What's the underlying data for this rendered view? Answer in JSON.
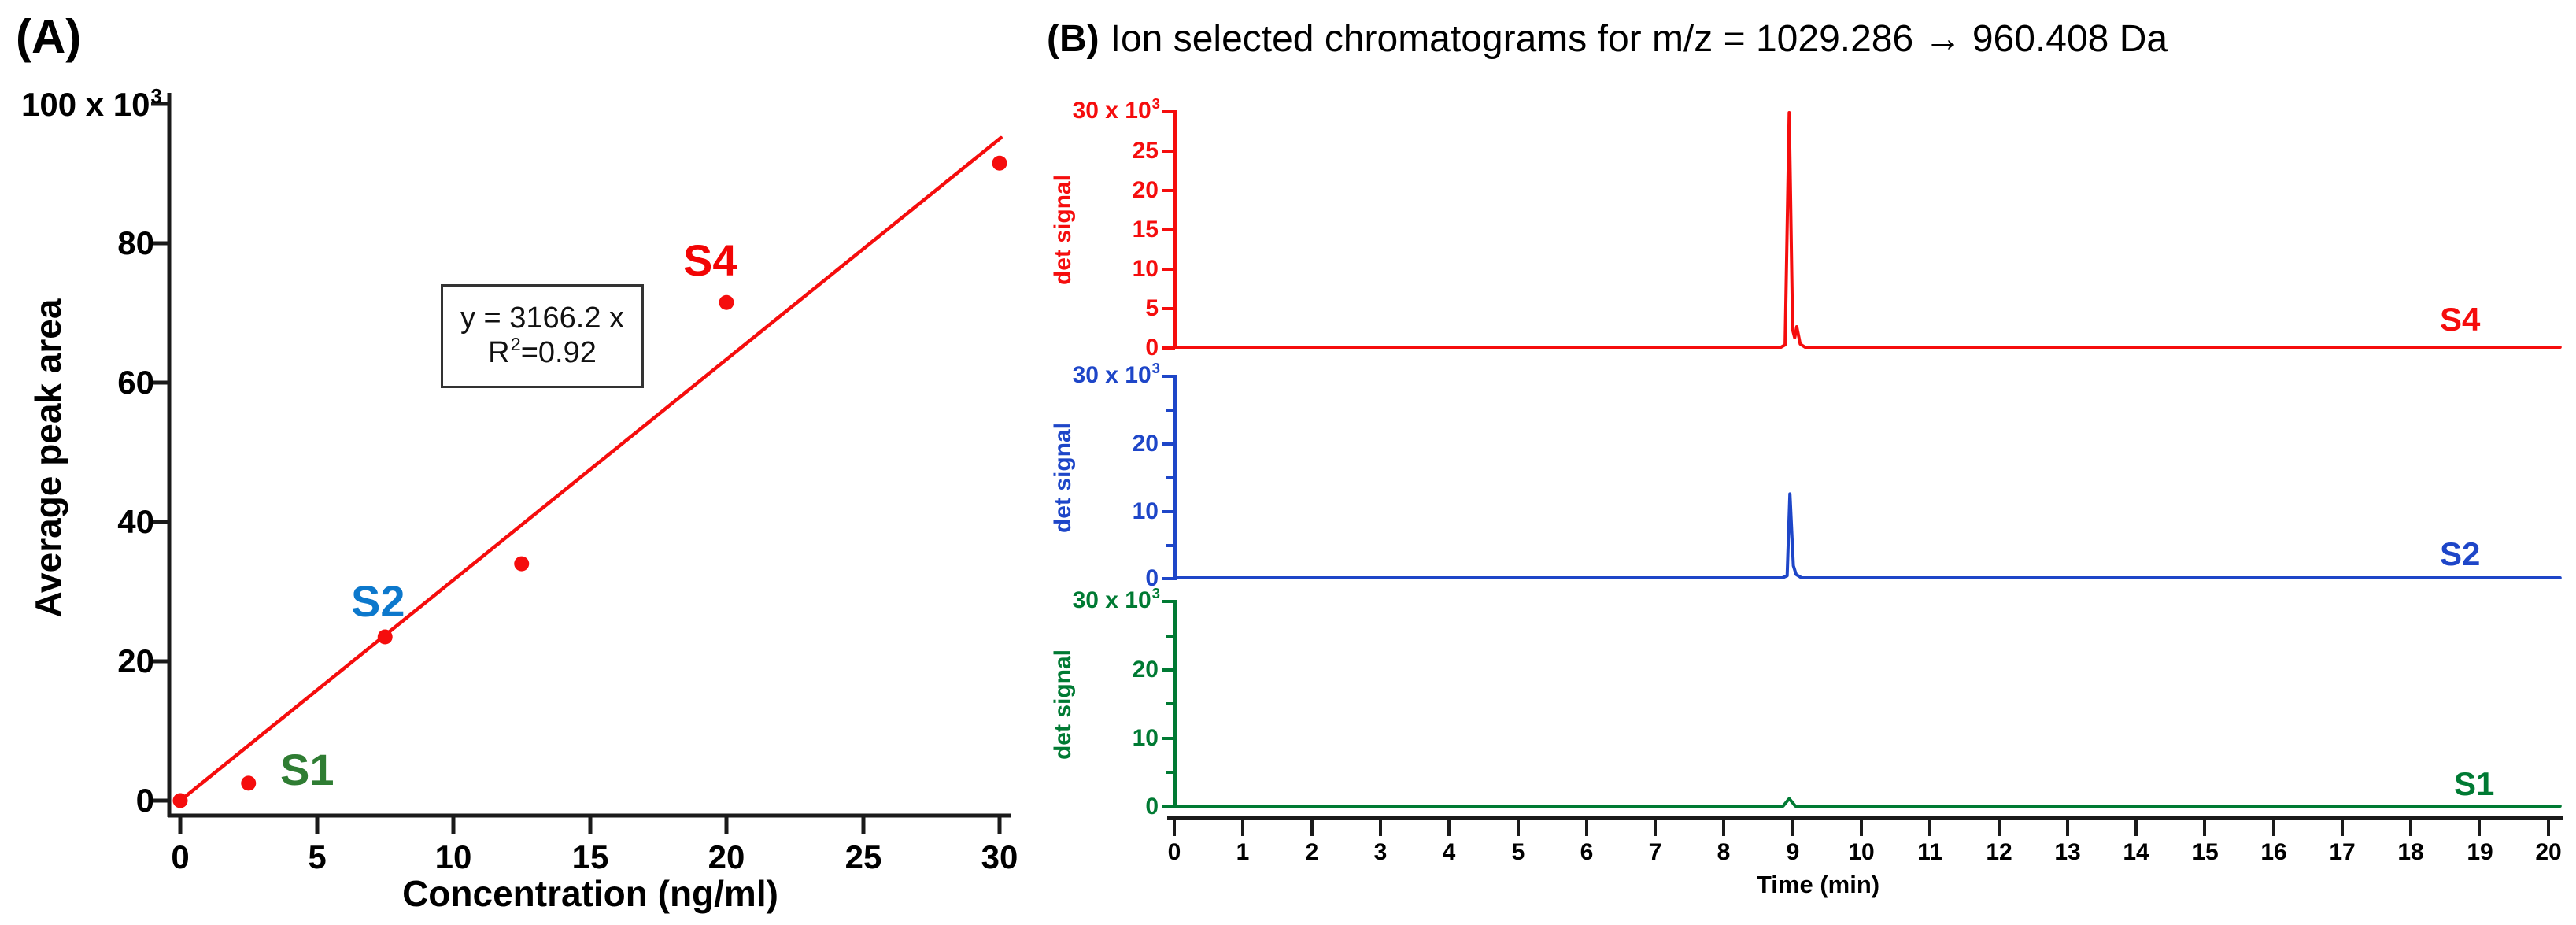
{
  "panelA": {
    "label": "(A)",
    "y_axis_title": "Average peak area",
    "x_axis_title": "Concentration (ng/ml)",
    "y_top_label_prefix": "100 x 10",
    "y_top_label_sup": "3",
    "y_tick_labels": [
      "80",
      "60",
      "40",
      "20",
      "0"
    ],
    "x_tick_labels": [
      "0",
      "5",
      "10",
      "15",
      "20",
      "25",
      "30"
    ],
    "equation_line1": "y = 3166.2 x",
    "equation_r": "R",
    "equation_r_sup": "2",
    "equation_r_rest": "=0.92",
    "sample_labels": {
      "s1": "S1",
      "s2": "S2",
      "s4": "S4"
    },
    "colors": {
      "points": "#f50d0d",
      "fit_line": "#f50d0d",
      "s1_label": "#2f7d33",
      "s2_label": "#0c78cc",
      "s4_label": "#f20505"
    }
  },
  "panelB": {
    "label": "(B)",
    "title": "Ion selected chromatograms for m/z = 1029.286 → 960.408 Da",
    "x_axis_title": "Time (min)",
    "x_tick_labels": [
      "0",
      "1",
      "2",
      "3",
      "4",
      "5",
      "6",
      "7",
      "8",
      "9",
      "10",
      "11",
      "12",
      "13",
      "14",
      "15",
      "16",
      "17",
      "18",
      "19",
      "20"
    ],
    "y_axis_title": "det signal",
    "sub_panels": [
      {
        "name": "S4",
        "color": "#f50d0d",
        "y_top_prefix": "30 x 10",
        "y_top_sup": "3",
        "y_tick_labels": [
          "25",
          "20",
          "15",
          "10",
          "5",
          "0"
        ]
      },
      {
        "name": "S2",
        "color": "#1e46c8",
        "y_top_prefix": "30 x 10",
        "y_top_sup": "3",
        "y_tick_labels": [
          "20",
          "10",
          "0"
        ]
      },
      {
        "name": "S1",
        "color": "#007a33",
        "y_top_prefix": "30 x 10",
        "y_top_sup": "3",
        "y_tick_labels": [
          "20",
          "10",
          "0"
        ]
      }
    ]
  },
  "chart_data": [
    {
      "type": "scatter",
      "title": "Calibration curve",
      "xlabel": "Concentration (ng/ml)",
      "ylabel": "Average peak area",
      "xlim": [
        0,
        30
      ],
      "ylim": [
        0,
        100000
      ],
      "y_unit": "x10^3",
      "points_x": [
        0,
        2.5,
        7.5,
        12.5,
        20,
        30
      ],
      "points_y_k": [
        0,
        2.5,
        23.5,
        34,
        71.5,
        91.5
      ],
      "fit": {
        "equation": "y = 3166.2 x",
        "slope": 3166.2,
        "r2": 0.92
      },
      "annotations": [
        {
          "text": "S1",
          "x": 2.5,
          "y_k": 2.5
        },
        {
          "text": "S2",
          "x": 7.5,
          "y_k": 23.5
        },
        {
          "text": "S4",
          "x": 20,
          "y_k": 71.5
        }
      ]
    },
    {
      "type": "line",
      "name": "S4",
      "color": "#f50d0d",
      "xlabel": "Time (min)",
      "ylabel": "det signal",
      "xlim": [
        0,
        20
      ],
      "ylim": [
        0,
        30000
      ],
      "peak_time_min": 8.95,
      "peak_height": 29800,
      "profile_t_vk": [
        [
          0,
          0
        ],
        [
          8.83,
          0
        ],
        [
          8.89,
          0.3
        ],
        [
          8.95,
          29.8
        ],
        [
          9.0,
          2.2
        ],
        [
          9.03,
          1.2
        ],
        [
          9.06,
          2.6
        ],
        [
          9.11,
          0.4
        ],
        [
          9.18,
          0
        ],
        [
          20.17,
          0
        ]
      ]
    },
    {
      "type": "line",
      "name": "S2",
      "color": "#1e46c8",
      "xlabel": "Time (min)",
      "ylabel": "det signal",
      "xlim": [
        0,
        20
      ],
      "ylim": [
        0,
        30000
      ],
      "peak_time_min": 8.95,
      "peak_height": 12500,
      "profile_t_vk": [
        [
          0,
          0
        ],
        [
          8.85,
          0
        ],
        [
          8.92,
          0.3
        ],
        [
          8.96,
          12.5
        ],
        [
          9.01,
          1.8
        ],
        [
          9.05,
          0.5
        ],
        [
          9.13,
          0
        ],
        [
          20.17,
          0
        ]
      ]
    },
    {
      "type": "line",
      "name": "S1",
      "color": "#007a33",
      "xlabel": "Time (min)",
      "ylabel": "det signal",
      "xlim": [
        0,
        20
      ],
      "ylim": [
        0,
        30000
      ],
      "peak_time_min": 8.95,
      "peak_height": 1100,
      "profile_t_vk": [
        [
          0,
          0
        ],
        [
          8.86,
          0
        ],
        [
          8.95,
          1.1
        ],
        [
          9.04,
          0
        ],
        [
          20.17,
          0
        ]
      ]
    }
  ]
}
